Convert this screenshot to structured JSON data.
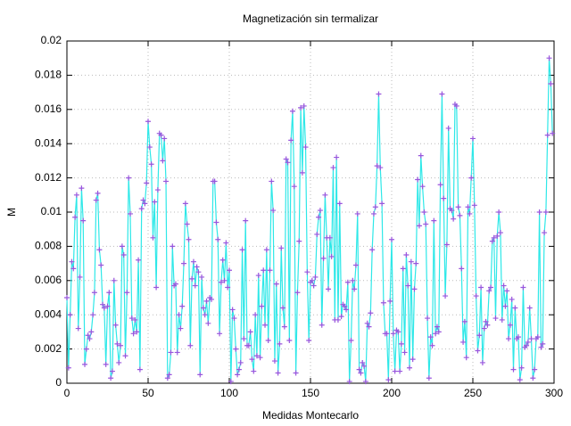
{
  "chart_data": {
    "type": "line",
    "title": "Magnetización sin termalizar",
    "xlabel": "Medidas Montecarlo",
    "ylabel": "M",
    "x": [
      0,
      1,
      2,
      3,
      4,
      5,
      6,
      7,
      8,
      9,
      10,
      11,
      12,
      13,
      14,
      15,
      16,
      17,
      18,
      19,
      20,
      21,
      22,
      23,
      24,
      25,
      26,
      27,
      28,
      29,
      30,
      31,
      32,
      33,
      34,
      35,
      36,
      37,
      38,
      39,
      40,
      41,
      42,
      43,
      44,
      45,
      46,
      47,
      48,
      49,
      50,
      51,
      52,
      53,
      54,
      55,
      56,
      57,
      58,
      59,
      60,
      61,
      62,
      63,
      64,
      65,
      66,
      67,
      68,
      69,
      70,
      71,
      72,
      73,
      74,
      75,
      76,
      77,
      78,
      79,
      80,
      81,
      82,
      83,
      84,
      85,
      86,
      87,
      88,
      89,
      90,
      91,
      92,
      93,
      94,
      95,
      96,
      97,
      98,
      99,
      100,
      101,
      102,
      103,
      104,
      105,
      106,
      107,
      108,
      109,
      110,
      111,
      112,
      113,
      114,
      115,
      116,
      117,
      118,
      119,
      120,
      121,
      122,
      123,
      124,
      125,
      126,
      127,
      128,
      129,
      130,
      131,
      132,
      133,
      134,
      135,
      136,
      137,
      138,
      139,
      140,
      141,
      142,
      143,
      144,
      145,
      146,
      147,
      148,
      149,
      150,
      151,
      152,
      153,
      154,
      155,
      156,
      157,
      158,
      159,
      160,
      161,
      162,
      163,
      164,
      165,
      166,
      167,
      168,
      169,
      170,
      171,
      172,
      173,
      174,
      175,
      176,
      177,
      178,
      179,
      180,
      181,
      182,
      183,
      184,
      185,
      186,
      187,
      188,
      189,
      190,
      191,
      192,
      193,
      194,
      195,
      196,
      197,
      198,
      199,
      200,
      201,
      202,
      203,
      204,
      205,
      206,
      207,
      208,
      209,
      210,
      211,
      212,
      213,
      214,
      215,
      216,
      217,
      218,
      219,
      220,
      221,
      222,
      223,
      224,
      225,
      226,
      227,
      228,
      229,
      230,
      231,
      232,
      233,
      234,
      235,
      236,
      237,
      238,
      239,
      240,
      241,
      242,
      243,
      244,
      245,
      246,
      247,
      248,
      249,
      250,
      251,
      252,
      253,
      254,
      255,
      256,
      257,
      258,
      259,
      260,
      261,
      262,
      263,
      264,
      265,
      266,
      267,
      268,
      269,
      270,
      271,
      272,
      273,
      274,
      275,
      276,
      277,
      278,
      279,
      280,
      281,
      282,
      283,
      284,
      285,
      286,
      287,
      288,
      289,
      290,
      291,
      292,
      293,
      294,
      295,
      296,
      297,
      298,
      299
    ],
    "series": [
      {
        "color": "#2ee8e8",
        "marker_color": "#9955dd",
        "values": [
          0.005,
          0.0009,
          0.004,
          0.0071,
          0.0067,
          0.0097,
          0.011,
          0.0032,
          0.0062,
          0.0114,
          0.0095,
          0.0011,
          0.002,
          0.0028,
          0.0026,
          0.003,
          0.004,
          0.0053,
          0.0107,
          0.0111,
          0.0078,
          0.0069,
          0.0046,
          0.0044,
          0.0011,
          0.0045,
          0.0053,
          0.0003,
          0.0007,
          0.006,
          0.0034,
          0.0023,
          0.0012,
          0.0022,
          0.008,
          0.0075,
          0.0016,
          0.0053,
          0.012,
          0.0099,
          0.0038,
          0.0029,
          0.0037,
          0.003,
          0.0072,
          0.0008,
          0.0102,
          0.0107,
          0.0105,
          0.0117,
          0.0153,
          0.0138,
          0.0128,
          0.0085,
          0.0106,
          0.0056,
          0.0113,
          0.0146,
          0.0145,
          0.013,
          0.0143,
          0.0118,
          0.0003,
          0.0005,
          0.0018,
          0.008,
          0.0057,
          0.0058,
          0.0018,
          0.004,
          0.0032,
          0.0045,
          0.007,
          0.0105,
          0.0093,
          0.0084,
          0.0022,
          0.0061,
          0.0071,
          0.0057,
          0.0068,
          0.0065,
          0.0005,
          0.0062,
          0.0044,
          0.004,
          0.0048,
          0.0035,
          0.005,
          0.0049,
          0.0118,
          0.0118,
          0.0094,
          0.0084,
          0.0029,
          0.0059,
          0.0072,
          0.006,
          0.0082,
          0.0056,
          0.0066,
          0.0001,
          0.0043,
          0.0038,
          0.002,
          0.0005,
          0.0008,
          0.0012,
          0.0078,
          0.0026,
          0.0095,
          0.0022,
          0.0022,
          0.003,
          0.0014,
          0.0007,
          0.004,
          0.0016,
          0.0063,
          0.0015,
          0.0045,
          0.0066,
          0.0034,
          0.0078,
          0.0025,
          0.0066,
          0.0118,
          0.0101,
          0.0013,
          0.0058,
          0.0006,
          0.0023,
          0.0079,
          0.0044,
          0.0033,
          0.0131,
          0.0129,
          0.0025,
          0.0142,
          0.0159,
          0.0115,
          0.0006,
          0.0053,
          0.0083,
          0.0161,
          0.0123,
          0.0162,
          0.0138,
          0.0065,
          0.0025,
          0.0059,
          0.006,
          0.0057,
          0.0062,
          0.0087,
          0.0097,
          0.0101,
          0.0034,
          0.0073,
          0.011,
          0.0085,
          0.0055,
          0.0085,
          0.0074,
          0.0126,
          0.0037,
          0.0132,
          0.0037,
          0.0105,
          0.0039,
          0.0046,
          0.0045,
          0.0043,
          0.0059,
          0.0001,
          0.0025,
          0.006,
          0.0055,
          0.0069,
          0.0099,
          0.0008,
          0.0006,
          0.0012,
          0.001,
          0.0001,
          0.0035,
          0.0033,
          0.0041,
          0.0078,
          0.0099,
          0.0103,
          0.0127,
          0.0169,
          0.0126,
          0.0105,
          0.0047,
          0.0029,
          0.0029,
          0.0002,
          0.0048,
          0.0084,
          0.0029,
          0.0007,
          0.0031,
          0.003,
          0.0007,
          0.0023,
          0.0067,
          0.0018,
          0.0075,
          0.0057,
          0.0009,
          0.0071,
          0.0014,
          0.0055,
          0.007,
          0.0119,
          0.0092,
          0.0133,
          0.0115,
          0.01,
          0.0093,
          0.0038,
          0.0003,
          0.0027,
          0.0022,
          0.0095,
          0.0029,
          0.0033,
          0.003,
          0.0116,
          0.0169,
          0.0108,
          0.0051,
          0.0081,
          0.0149,
          0.0102,
          0.0101,
          0.0096,
          0.0163,
          0.0162,
          0.0103,
          0.0098,
          0.0067,
          0.0024,
          0.0036,
          0.0015,
          0.0103,
          0.0099,
          0.012,
          0.0143,
          0.0104,
          0.0051,
          0.0019,
          0.0028,
          0.0056,
          0.0012,
          0.0032,
          0.0036,
          0.0034,
          0.0054,
          0.0056,
          0.0083,
          0.0085,
          0.0038,
          0.0086,
          0.01,
          0.0088,
          0.0037,
          0.0057,
          0.0045,
          0.0054,
          0.0026,
          0.0034,
          0.0049,
          0.0008,
          0.0044,
          0.0026,
          0.0027,
          0.0002,
          0.0009,
          0.0056,
          0.0021,
          0.0022,
          0.0024,
          0.0044,
          0.0026,
          0.0003,
          0.0008,
          0.0026,
          0.0027,
          0.01,
          0.0021,
          0.0023,
          0.0088,
          0.01,
          0.0145,
          0.019,
          0.0175,
          0.0146
        ]
      }
    ],
    "xlim": [
      0,
      300
    ],
    "xticks": [
      0,
      50,
      100,
      150,
      200,
      250,
      300
    ],
    "ylim": [
      0,
      0.02
    ],
    "yticks": [
      0,
      0.002,
      0.004,
      0.006,
      0.008,
      0.01,
      0.012,
      0.014,
      0.016,
      0.018,
      0.02
    ],
    "grid": true
  }
}
